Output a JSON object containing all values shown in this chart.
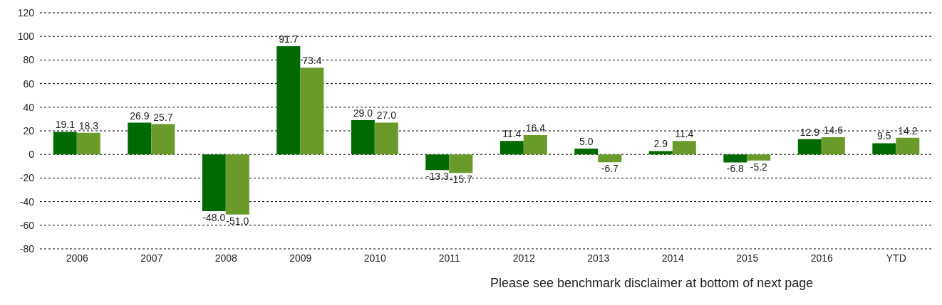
{
  "chart_data": {
    "type": "bar",
    "categories": [
      "2006",
      "2007",
      "2008",
      "2009",
      "2010",
      "2011",
      "2012",
      "2013",
      "2014",
      "2015",
      "2016",
      "YTD"
    ],
    "series": [
      {
        "color": "#006a00",
        "values": [
          19.1,
          26.9,
          -48.0,
          91.7,
          29.0,
          -13.3,
          11.4,
          5.0,
          2.9,
          -6.8,
          12.9,
          9.5
        ],
        "value_labels": [
          "19.1",
          "26.9",
          "-48.0",
          "91.7",
          "29.0",
          "-13.3",
          "11.4",
          "5.0",
          "2.9",
          "-6.8",
          "12.9",
          "9.5"
        ]
      },
      {
        "color": "#6a9a2a",
        "values": [
          18.3,
          25.7,
          -51.0,
          73.4,
          27.0,
          -15.7,
          16.4,
          -6.7,
          11.4,
          -5.2,
          14.6,
          14.2
        ],
        "value_labels": [
          "18.3",
          "25.7",
          "-51.0",
          "73.4",
          "27.0",
          "-15.7",
          "16.4",
          "-6.7",
          "11.4",
          "-5.2",
          "14.6",
          "14.2"
        ]
      }
    ],
    "ylim": [
      -80,
      120
    ],
    "yticks": [
      -80,
      -60,
      -40,
      -20,
      0,
      20,
      40,
      60,
      80,
      100,
      120
    ],
    "grid": "y",
    "legend": false,
    "annotations": [
      "Please see benchmark disclaimer at bottom of next page"
    ]
  }
}
